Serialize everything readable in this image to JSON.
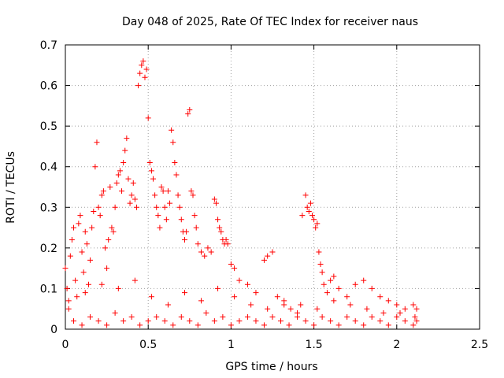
{
  "chart_data": {
    "type": "scatter",
    "title": "Day 048 of 2025, Rate Of TEC Index for receiver naus",
    "xlabel": "GPS time / hours",
    "ylabel": "ROTI / TECUs",
    "xlim": [
      0,
      2.5
    ],
    "ylim": [
      0,
      0.7
    ],
    "xticks": [
      0,
      0.5,
      1,
      1.5,
      2,
      2.5
    ],
    "xtick_labels": [
      "0",
      "0.5",
      "1",
      "1.5",
      "2",
      "2.5"
    ],
    "yticks": [
      0,
      0.1,
      0.2,
      0.3,
      0.4,
      0.5,
      0.6,
      0.7
    ],
    "ytick_labels": [
      "0",
      "0.1",
      "0.2",
      "0.3",
      "0.4",
      "0.5",
      "0.6",
      "0.7"
    ],
    "grid": true,
    "marker": "+",
    "color": "#ff0000",
    "series": [
      {
        "name": "ROTI",
        "points": [
          [
            0.0,
            0.15
          ],
          [
            0.01,
            0.1
          ],
          [
            0.02,
            0.05
          ],
          [
            0.03,
            0.18
          ],
          [
            0.04,
            0.22
          ],
          [
            0.05,
            0.25
          ],
          [
            0.06,
            0.12
          ],
          [
            0.07,
            0.08
          ],
          [
            0.08,
            0.26
          ],
          [
            0.09,
            0.28
          ],
          [
            0.1,
            0.19
          ],
          [
            0.11,
            0.14
          ],
          [
            0.12,
            0.24
          ],
          [
            0.13,
            0.21
          ],
          [
            0.14,
            0.11
          ],
          [
            0.15,
            0.17
          ],
          [
            0.16,
            0.25
          ],
          [
            0.17,
            0.29
          ],
          [
            0.18,
            0.4
          ],
          [
            0.19,
            0.46
          ],
          [
            0.2,
            0.3
          ],
          [
            0.21,
            0.28
          ],
          [
            0.22,
            0.33
          ],
          [
            0.23,
            0.34
          ],
          [
            0.24,
            0.2
          ],
          [
            0.25,
            0.15
          ],
          [
            0.26,
            0.22
          ],
          [
            0.27,
            0.35
          ],
          [
            0.28,
            0.25
          ],
          [
            0.29,
            0.24
          ],
          [
            0.3,
            0.3
          ],
          [
            0.31,
            0.36
          ],
          [
            0.32,
            0.38
          ],
          [
            0.33,
            0.39
          ],
          [
            0.34,
            0.34
          ],
          [
            0.35,
            0.41
          ],
          [
            0.36,
            0.44
          ],
          [
            0.37,
            0.47
          ],
          [
            0.38,
            0.37
          ],
          [
            0.39,
            0.31
          ],
          [
            0.4,
            0.33
          ],
          [
            0.41,
            0.36
          ],
          [
            0.42,
            0.32
          ],
          [
            0.43,
            0.3
          ],
          [
            0.44,
            0.6
          ],
          [
            0.45,
            0.63
          ],
          [
            0.46,
            0.65
          ],
          [
            0.47,
            0.66
          ],
          [
            0.48,
            0.62
          ],
          [
            0.49,
            0.64
          ],
          [
            0.5,
            0.52
          ],
          [
            0.51,
            0.41
          ],
          [
            0.52,
            0.39
          ],
          [
            0.53,
            0.37
          ],
          [
            0.54,
            0.33
          ],
          [
            0.55,
            0.3
          ],
          [
            0.56,
            0.28
          ],
          [
            0.57,
            0.25
          ],
          [
            0.58,
            0.35
          ],
          [
            0.59,
            0.34
          ],
          [
            0.6,
            0.3
          ],
          [
            0.61,
            0.27
          ],
          [
            0.62,
            0.34
          ],
          [
            0.63,
            0.31
          ],
          [
            0.64,
            0.49
          ],
          [
            0.65,
            0.46
          ],
          [
            0.66,
            0.41
          ],
          [
            0.67,
            0.38
          ],
          [
            0.68,
            0.33
          ],
          [
            0.69,
            0.3
          ],
          [
            0.7,
            0.27
          ],
          [
            0.71,
            0.24
          ],
          [
            0.72,
            0.22
          ],
          [
            0.73,
            0.24
          ],
          [
            0.74,
            0.53
          ],
          [
            0.75,
            0.54
          ],
          [
            0.76,
            0.34
          ],
          [
            0.77,
            0.33
          ],
          [
            0.78,
            0.28
          ],
          [
            0.79,
            0.25
          ],
          [
            0.8,
            0.21
          ],
          [
            0.82,
            0.19
          ],
          [
            0.84,
            0.18
          ],
          [
            0.86,
            0.2
          ],
          [
            0.88,
            0.19
          ],
          [
            0.9,
            0.32
          ],
          [
            0.91,
            0.31
          ],
          [
            0.92,
            0.27
          ],
          [
            0.93,
            0.25
          ],
          [
            0.94,
            0.24
          ],
          [
            0.95,
            0.22
          ],
          [
            0.96,
            0.21
          ],
          [
            0.97,
            0.22
          ],
          [
            0.98,
            0.21
          ],
          [
            1.0,
            0.16
          ],
          [
            1.02,
            0.15
          ],
          [
            1.05,
            0.12
          ],
          [
            1.1,
            0.11
          ],
          [
            1.15,
            0.09
          ],
          [
            1.2,
            0.17
          ],
          [
            1.22,
            0.18
          ],
          [
            1.25,
            0.19
          ],
          [
            1.28,
            0.08
          ],
          [
            1.32,
            0.06
          ],
          [
            1.36,
            0.05
          ],
          [
            1.4,
            0.04
          ],
          [
            1.43,
            0.28
          ],
          [
            1.45,
            0.33
          ],
          [
            1.46,
            0.3
          ],
          [
            1.47,
            0.29
          ],
          [
            1.48,
            0.31
          ],
          [
            1.49,
            0.28
          ],
          [
            1.5,
            0.27
          ],
          [
            1.51,
            0.25
          ],
          [
            1.52,
            0.26
          ],
          [
            1.53,
            0.19
          ],
          [
            1.54,
            0.16
          ],
          [
            1.55,
            0.14
          ],
          [
            1.56,
            0.11
          ],
          [
            1.58,
            0.09
          ],
          [
            1.6,
            0.12
          ],
          [
            1.62,
            0.13
          ],
          [
            1.65,
            0.1
          ],
          [
            1.7,
            0.08
          ],
          [
            1.75,
            0.11
          ],
          [
            1.8,
            0.12
          ],
          [
            1.85,
            0.1
          ],
          [
            1.9,
            0.08
          ],
          [
            1.95,
            0.07
          ],
          [
            2.0,
            0.06
          ],
          [
            2.05,
            0.05
          ],
          [
            2.1,
            0.06
          ],
          [
            2.12,
            0.05
          ],
          [
            0.05,
            0.02
          ],
          [
            0.1,
            0.01
          ],
          [
            0.15,
            0.03
          ],
          [
            0.2,
            0.02
          ],
          [
            0.25,
            0.01
          ],
          [
            0.3,
            0.04
          ],
          [
            0.35,
            0.02
          ],
          [
            0.4,
            0.03
          ],
          [
            0.45,
            0.01
          ],
          [
            0.5,
            0.02
          ],
          [
            0.55,
            0.03
          ],
          [
            0.6,
            0.02
          ],
          [
            0.65,
            0.01
          ],
          [
            0.7,
            0.03
          ],
          [
            0.75,
            0.02
          ],
          [
            0.8,
            0.01
          ],
          [
            0.85,
            0.04
          ],
          [
            0.9,
            0.02
          ],
          [
            0.95,
            0.03
          ],
          [
            1.0,
            0.01
          ],
          [
            1.05,
            0.02
          ],
          [
            1.1,
            0.03
          ],
          [
            1.15,
            0.02
          ],
          [
            1.2,
            0.01
          ],
          [
            1.25,
            0.03
          ],
          [
            1.3,
            0.02
          ],
          [
            1.35,
            0.01
          ],
          [
            1.4,
            0.03
          ],
          [
            1.45,
            0.02
          ],
          [
            1.5,
            0.01
          ],
          [
            1.55,
            0.03
          ],
          [
            1.6,
            0.02
          ],
          [
            1.65,
            0.01
          ],
          [
            1.7,
            0.03
          ],
          [
            1.75,
            0.02
          ],
          [
            1.8,
            0.01
          ],
          [
            1.85,
            0.03
          ],
          [
            1.9,
            0.02
          ],
          [
            1.95,
            0.01
          ],
          [
            2.0,
            0.03
          ],
          [
            2.05,
            0.02
          ],
          [
            2.1,
            0.01
          ],
          [
            2.12,
            0.02
          ],
          [
            0.02,
            0.07
          ],
          [
            0.12,
            0.09
          ],
          [
            0.22,
            0.11
          ],
          [
            0.32,
            0.1
          ],
          [
            0.42,
            0.12
          ],
          [
            0.52,
            0.08
          ],
          [
            0.62,
            0.06
          ],
          [
            0.72,
            0.09
          ],
          [
            0.82,
            0.07
          ],
          [
            0.92,
            0.1
          ],
          [
            1.02,
            0.08
          ],
          [
            1.12,
            0.06
          ],
          [
            1.22,
            0.05
          ],
          [
            1.32,
            0.07
          ],
          [
            1.42,
            0.06
          ],
          [
            1.52,
            0.05
          ],
          [
            1.62,
            0.07
          ],
          [
            1.72,
            0.06
          ],
          [
            1.82,
            0.05
          ],
          [
            1.92,
            0.04
          ],
          [
            2.02,
            0.04
          ],
          [
            2.11,
            0.03
          ]
        ]
      }
    ]
  }
}
